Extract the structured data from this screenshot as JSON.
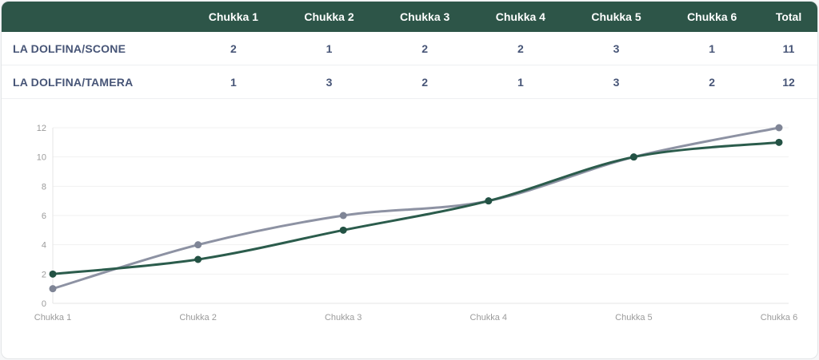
{
  "table": {
    "columns": [
      "Chukka 1",
      "Chukka 2",
      "Chukka 3",
      "Chukka 4",
      "Chukka 5",
      "Chukka 6",
      "Total"
    ],
    "rows": [
      {
        "team": "LA DOLFINA/SCONE",
        "values": [
          2,
          1,
          2,
          2,
          3,
          1
        ],
        "total": 11
      },
      {
        "team": "LA DOLFINA/TAMERA",
        "values": [
          1,
          3,
          2,
          1,
          3,
          2
        ],
        "total": 12
      }
    ]
  },
  "chart_data": {
    "type": "line",
    "x": [
      "Chukka 1",
      "Chukka 2",
      "Chukka 3",
      "Chukka 4",
      "Chukka 5",
      "Chukka 6"
    ],
    "series": [
      {
        "name": "LA DOLFINA/SCONE",
        "values": [
          2,
          3,
          5,
          7,
          10,
          11
        ],
        "color": "#2b5c4c",
        "dot_color": "#235244"
      },
      {
        "name": "LA DOLFINA/TAMERA",
        "values": [
          1,
          4,
          6,
          7,
          10,
          12
        ],
        "color": "#8d92a3",
        "dot_color": "#7f8596"
      }
    ],
    "title": "",
    "xlabel": "",
    "ylabel": "",
    "ylim": [
      0,
      12
    ],
    "ytick_step": 2,
    "grid": true,
    "smooth": true,
    "legend": "none"
  },
  "colors": {
    "header_bg": "#2d5548",
    "header_text": "#ffffff",
    "row_text": "#475577",
    "grid_line": "#f1f1f1",
    "axis_line": "#e6e6e6",
    "tick_text": "#9b9b9b"
  }
}
